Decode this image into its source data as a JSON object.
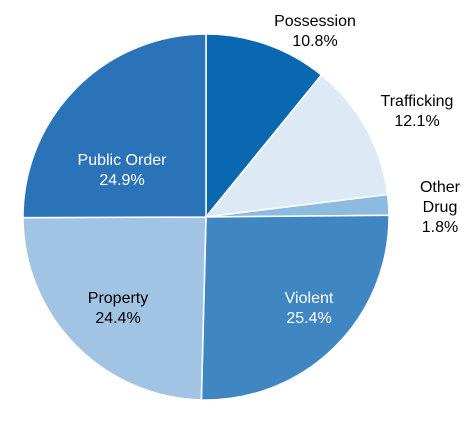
{
  "chart_data": {
    "type": "pie",
    "title": "",
    "slices": [
      {
        "label": [
          "Possession"
        ],
        "value_text": "10.8%",
        "value": 10.8,
        "color": "#0a68b0"
      },
      {
        "label": [
          "Trafficking"
        ],
        "value_text": "12.1%",
        "value": 12.1,
        "color": "#dde9f5"
      },
      {
        "label": [
          "Other",
          "Drug"
        ],
        "value_text": "1.8%",
        "value": 1.8,
        "color": "#8dbae0"
      },
      {
        "label": [
          "Violent"
        ],
        "value_text": "25.4%",
        "value": 25.4,
        "color": "#3f86c3"
      },
      {
        "label": [
          "Property"
        ],
        "value_text": "24.4%",
        "value": 24.4,
        "color": "#a2c4e4"
      },
      {
        "label": [
          "Public Order"
        ],
        "value_text": "24.9%",
        "value": 24.9,
        "color": "#2a73b8"
      }
    ],
    "start_angle_deg": 0,
    "direction": "clockwise",
    "label_colors": {
      "inside_light": "#ffffff",
      "inside_dark": "#000000",
      "outside": "#000000"
    }
  }
}
